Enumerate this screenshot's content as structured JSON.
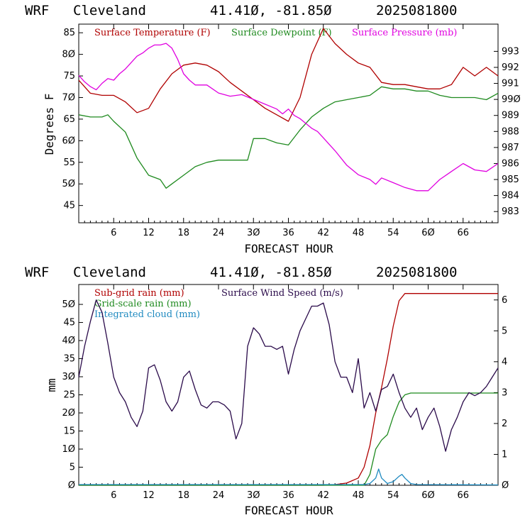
{
  "charts": [
    {
      "header": {
        "model": "WRF",
        "city": "Cleveland",
        "coords": "41.41Ø, -81.85Ø",
        "run": "2025081800"
      },
      "xlabel": "FORECAST HOUR",
      "ylabel": "Degrees F",
      "x_ticks": [
        "6",
        "12",
        "18",
        "24",
        "3Ø",
        "36",
        "42",
        "48",
        "54",
        "6Ø",
        "66"
      ],
      "y_left_ticks": [
        "45",
        "5Ø",
        "55",
        "6Ø",
        "65",
        "7Ø",
        "75",
        "8Ø",
        "85"
      ],
      "y_right_ticks": [
        "983",
        "984",
        "985",
        "986",
        "987",
        "988",
        "989",
        "99Ø",
        "991",
        "992",
        "993"
      ],
      "legend": [
        {
          "label": "Surface Temperature (F)",
          "color": "#b00000"
        },
        {
          "label": "Surface Dewpoint (F)",
          "color": "#1f8a1f"
        },
        {
          "label": "Surface Pressure (mb)",
          "color": "#e000e0"
        }
      ]
    },
    {
      "header": {
        "model": "WRF",
        "city": "Cleveland",
        "coords": "41.41Ø, -81.85Ø",
        "run": "2025081800"
      },
      "xlabel": "FORECAST HOUR",
      "ylabel": "mm",
      "x_ticks": [
        "6",
        "12",
        "18",
        "24",
        "3Ø",
        "36",
        "42",
        "48",
        "54",
        "6Ø",
        "66"
      ],
      "y_left_ticks": [
        "Ø",
        "5",
        "1Ø",
        "15",
        "2Ø",
        "25",
        "3Ø",
        "35",
        "4Ø",
        "45",
        "5Ø"
      ],
      "y_right_ticks": [
        "Ø",
        "1",
        "2",
        "3",
        "4",
        "5",
        "6"
      ],
      "legend": [
        {
          "label": "Sub-grid rain (mm)",
          "color": "#b00000"
        },
        {
          "label": "Grid-scale rain (mm)",
          "color": "#1f8a1f"
        },
        {
          "label": "Integrated cloud (mm)",
          "color": "#1f8ac0"
        },
        {
          "label": "Surface Wind Speed (m/s)",
          "color": "#2a0a4a"
        }
      ]
    }
  ],
  "chart_data": [
    {
      "type": "line",
      "xlim": [
        0,
        72
      ],
      "ylim_left": [
        41,
        87
      ],
      "ylim_right": [
        982.3,
        994.7
      ],
      "series": [
        {
          "name": "Surface Temperature (F)",
          "axis": "left",
          "color": "#b00000",
          "x": [
            0,
            2,
            4,
            6,
            8,
            10,
            12,
            14,
            16,
            18,
            20,
            22,
            24,
            26,
            28,
            30,
            32,
            34,
            36,
            38,
            40,
            42,
            44,
            46,
            48,
            50,
            52,
            54,
            56,
            58,
            60,
            62,
            64,
            66,
            68,
            70,
            72
          ],
          "y": [
            74,
            71,
            70.5,
            70.5,
            69,
            66.5,
            67.5,
            72,
            75.5,
            77.5,
            78,
            77.5,
            76,
            73.5,
            71.5,
            69.5,
            67.5,
            66,
            64.5,
            70,
            80,
            86,
            82.5,
            80,
            78,
            77,
            73.5,
            73,
            73,
            72.5,
            72,
            72,
            73,
            77,
            75,
            77,
            75
          ]
        },
        {
          "name": "Surface Dewpoint (F)",
          "axis": "left",
          "color": "#1f8a1f",
          "x": [
            0,
            2,
            4,
            5,
            6,
            8,
            10,
            12,
            14,
            15,
            16,
            18,
            20,
            22,
            24,
            26,
            28,
            29,
            30,
            32,
            34,
            36,
            38,
            40,
            42,
            44,
            46,
            48,
            50,
            52,
            54,
            56,
            58,
            60,
            62,
            64,
            66,
            68,
            70,
            72
          ],
          "y": [
            66,
            65.5,
            65.5,
            66,
            64.5,
            62,
            56,
            52,
            51,
            49,
            50,
            52,
            54,
            55,
            55.5,
            55.5,
            55.5,
            55.5,
            60.5,
            60.5,
            59.5,
            59,
            62.5,
            65.5,
            67.5,
            69,
            69.5,
            70,
            70.5,
            72.5,
            72,
            72,
            71.5,
            71.5,
            70.5,
            70,
            70,
            70,
            69.5,
            71
          ]
        },
        {
          "name": "Surface Pressure (mb)",
          "axis": "right",
          "color": "#e000e0",
          "x": [
            0,
            1,
            2,
            3,
            4,
            5,
            6,
            7,
            8,
            9,
            10,
            11,
            12,
            13,
            14,
            15,
            16,
            17,
            18,
            19,
            20,
            22,
            24,
            26,
            28,
            30,
            32,
            34,
            35,
            36,
            37,
            38,
            39,
            40,
            41,
            42,
            43,
            44,
            46,
            48,
            50,
            51,
            52,
            54,
            56,
            58,
            60,
            62,
            64,
            66,
            68,
            70,
            72
          ],
          "y": [
            991.5,
            991.1,
            990.8,
            990.6,
            991,
            991.3,
            991.2,
            991.6,
            991.9,
            992.3,
            992.7,
            992.9,
            993.2,
            993.4,
            993.4,
            993.5,
            993.2,
            992.5,
            991.6,
            991.2,
            990.9,
            990.9,
            990.4,
            990.2,
            990.3,
            990,
            989.7,
            989.4,
            989.1,
            989.4,
            989,
            988.8,
            988.5,
            988.2,
            988,
            987.6,
            987.2,
            986.8,
            985.9,
            985.3,
            985,
            984.7,
            985.1,
            984.8,
            984.5,
            984.3,
            984.3,
            985,
            985.5,
            986,
            985.6,
            985.5,
            986
          ]
        }
      ]
    },
    {
      "type": "line",
      "xlim": [
        0,
        72
      ],
      "ylim_left": [
        0,
        55.5
      ],
      "ylim_right": [
        0,
        6.5
      ],
      "series": [
        {
          "name": "Sub-grid rain (mm)",
          "axis": "left",
          "color": "#b00000",
          "x": [
            0,
            42,
            44,
            46,
            48,
            49,
            50,
            51,
            52,
            53,
            54,
            55,
            56,
            72
          ],
          "y": [
            0,
            0,
            0.2,
            0.6,
            2,
            5,
            11,
            20,
            27,
            35,
            44,
            51,
            53,
            53
          ]
        },
        {
          "name": "Grid-scale rain (mm)",
          "axis": "left",
          "color": "#1f8a1f",
          "x": [
            0,
            49,
            50,
            51,
            52,
            53,
            54,
            55,
            56,
            57,
            58,
            72
          ],
          "y": [
            0,
            0,
            3,
            10,
            12.5,
            14,
            19,
            23,
            25,
            25.5,
            25.5,
            25.5
          ]
        },
        {
          "name": "Integrated cloud (mm)",
          "axis": "left",
          "color": "#1f8ac0",
          "x": [
            0,
            49,
            50,
            51,
            51.5,
            52,
            53,
            54,
            55,
            55.5,
            56,
            57,
            58,
            72
          ],
          "y": [
            0.2,
            0.2,
            0.5,
            2,
            4.5,
            2,
            0.5,
            1,
            2.5,
            3,
            2,
            0.5,
            0.2,
            0.1
          ]
        },
        {
          "name": "Surface Wind Speed (m/s)",
          "axis": "right",
          "color": "#2a0a4a",
          "x": [
            0,
            1,
            2,
            3,
            4,
            5,
            6,
            7,
            8,
            9,
            10,
            11,
            12,
            13,
            14,
            15,
            16,
            17,
            18,
            19,
            20,
            21,
            22,
            23,
            24,
            25,
            26,
            27,
            28,
            29,
            30,
            31,
            32,
            33,
            34,
            35,
            36,
            37,
            38,
            39,
            40,
            41,
            42,
            43,
            44,
            45,
            46,
            47,
            48,
            49,
            50,
            51,
            52,
            53,
            54,
            55,
            56,
            57,
            58,
            59,
            60,
            61,
            62,
            63,
            64,
            65,
            66,
            67,
            68,
            69,
            70,
            71,
            72
          ],
          "y": [
            3.5,
            4.5,
            5.3,
            6,
            5.6,
            4.6,
            3.5,
            3,
            2.7,
            2.2,
            1.9,
            2.4,
            3.8,
            3.9,
            3.4,
            2.7,
            2.4,
            2.7,
            3.5,
            3.7,
            3.1,
            2.6,
            2.5,
            2.7,
            2.7,
            2.6,
            2.4,
            1.5,
            2,
            4.5,
            5.1,
            4.9,
            4.5,
            4.5,
            4.4,
            4.5,
            3.6,
            4.4,
            5,
            5.4,
            5.8,
            5.8,
            5.9,
            5.2,
            4,
            3.5,
            3.5,
            3,
            4.1,
            2.5,
            3,
            2.4,
            3.1,
            3.2,
            3.6,
            3,
            2.5,
            2.2,
            2.5,
            1.8,
            2.2,
            2.5,
            1.9,
            1.1,
            1.8,
            2.2,
            2.7,
            3,
            2.9,
            3,
            3.2,
            3.5,
            3.8
          ]
        }
      ]
    }
  ]
}
